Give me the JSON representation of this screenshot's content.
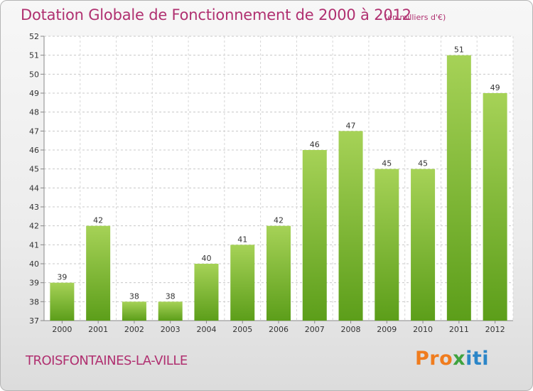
{
  "title": "Dotation Globale de Fonctionnement de 2000 à 2012",
  "unit_note": "(en milliers d'€)",
  "commune": "TROISFONTAINES-LA-VILLE",
  "logo": {
    "part1": "Pro",
    "part2": "x",
    "part3": "iti"
  },
  "colors": {
    "title": "#b03070",
    "bar_top": "#a6d257",
    "bar_bottom": "#5c9e1a"
  },
  "chart_data": {
    "type": "bar",
    "title": "Dotation Globale de Fonctionnement de 2000 à 2012",
    "xlabel": "",
    "ylabel": "",
    "ylim": [
      37,
      52
    ],
    "yticks": [
      37,
      38,
      39,
      40,
      41,
      42,
      43,
      44,
      45,
      46,
      47,
      48,
      49,
      50,
      51,
      52
    ],
    "grid": true,
    "categories": [
      "2000",
      "2001",
      "2002",
      "2003",
      "2004",
      "2005",
      "2006",
      "2007",
      "2008",
      "2009",
      "2010",
      "2011",
      "2012"
    ],
    "values": [
      39,
      42,
      38,
      38,
      40,
      41,
      42,
      46,
      47,
      45,
      45,
      51,
      49
    ]
  }
}
